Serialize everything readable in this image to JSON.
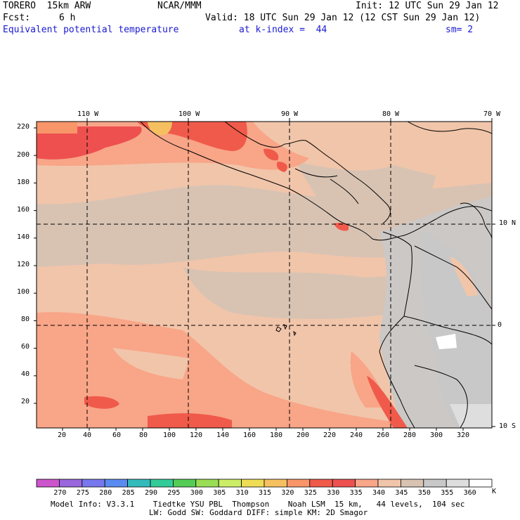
{
  "header": {
    "model": "TORERO  15km ARW",
    "org": "NCAR/MMM",
    "init": "Init: 12 UTC Sun 29 Jan 12",
    "fcst_label": "Fcst:",
    "fcst_value": "6 h",
    "valid": "Valid: 18 UTC Sun 29 Jan 12 (12 CST Sun 29 Jan 12)",
    "field": "Equivalent potential temperature",
    "level": "at k-index =  44",
    "smoothing": "sm= 2"
  },
  "map": {
    "lon_labels": [
      "110 W",
      "100 W",
      "90 W",
      "80 W",
      "70 W"
    ],
    "lat_labels": [
      "10 N",
      "0",
      "10 S"
    ],
    "y_ticks": [
      "220",
      "200",
      "180",
      "160",
      "140",
      "120",
      "100",
      "80",
      "60",
      "40",
      "20"
    ],
    "x_ticks": [
      "20",
      "40",
      "60",
      "80",
      "100",
      "120",
      "140",
      "160",
      "180",
      "200",
      "220",
      "240",
      "260",
      "280",
      "300",
      "320"
    ]
  },
  "colorbar": {
    "labels": [
      "270",
      "275",
      "280",
      "285",
      "290",
      "295",
      "300",
      "305",
      "310",
      "315",
      "320",
      "325",
      "330",
      "335",
      "340",
      "345",
      "350",
      "355",
      "360"
    ],
    "unit": "K",
    "colors": [
      "#cc55cc",
      "#9966dd",
      "#7777ee",
      "#5a8bf0",
      "#33bbbb",
      "#33cc99",
      "#55cc55",
      "#99dd55",
      "#ccee66",
      "#eedd55",
      "#f6c060",
      "#f8966a",
      "#f05a4a",
      "#ee5050",
      "#f8a588",
      "#f1c5aa",
      "#d8c3b3",
      "#c8c8c8",
      "#dedede",
      "#ffffff"
    ]
  },
  "footer": {
    "line1": "Model Info: V3.3.1    Tiedtke YSU PBL  Thompson    Noah LSM  15 km,   44 levels,  104 sec",
    "line2": "LW: Godd SW: Goddard DIFF: simple KM: 2D Smagor"
  }
}
